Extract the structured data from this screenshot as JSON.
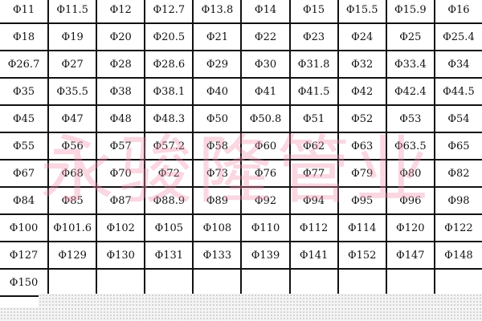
{
  "watermark": "永骏隆管业",
  "colors": {
    "watermark": "#f08caa",
    "grid": "#111111"
  },
  "rows": [
    [
      "Φ11",
      "Φ11.5",
      "Φ12",
      "Φ12.7",
      "Φ13.8",
      "Φ14",
      "Φ15",
      "Φ15.5",
      "Φ15.9",
      "Φ16"
    ],
    [
      "Φ18",
      "Φ19",
      "Φ20",
      "Φ20.5",
      "Φ21",
      "Φ22",
      "Φ23",
      "Φ24",
      "Φ25",
      "Φ25.4"
    ],
    [
      "Φ26.7",
      "Φ27",
      "Φ28",
      "Φ28.6",
      "Φ29",
      "Φ30",
      "Φ31.8",
      "Φ32",
      "Φ33.4",
      "Φ34"
    ],
    [
      "Φ35",
      "Φ35.5",
      "Φ38",
      "Φ38.1",
      "Φ40",
      "Φ41",
      "Φ41.5",
      "Φ42",
      "Φ42.4",
      "Φ44.5"
    ],
    [
      "Φ45",
      "Φ47",
      "Φ48",
      "Φ48.3",
      "Φ50",
      "Φ50.8",
      "Φ51",
      "Φ52",
      "Φ53",
      "Φ54"
    ],
    [
      "Φ55",
      "Φ56",
      "Φ57",
      "Φ57.2",
      "Φ58",
      "Φ60",
      "Φ62",
      "Φ63",
      "Φ63.5",
      "Φ65"
    ],
    [
      "Φ67",
      "Φ68",
      "Φ70",
      "Φ72",
      "Φ73",
      "Φ76",
      "Φ77",
      "Φ79",
      "Φ80",
      "Φ82"
    ],
    [
      "Φ84",
      "Φ85",
      "Φ87",
      "Φ88.9",
      "Φ89",
      "Φ92",
      "Φ94",
      "Φ95",
      "Φ96",
      "Φ98"
    ],
    [
      "Φ100",
      "Φ101.6",
      "Φ102",
      "Φ105",
      "Φ108",
      "Φ110",
      "Φ112",
      "Φ114",
      "Φ120",
      "Φ122"
    ],
    [
      "Φ127",
      "Φ129",
      "Φ130",
      "Φ131",
      "Φ133",
      "Φ139",
      "Φ141",
      "Φ152",
      "Φ147",
      "Φ148"
    ],
    [
      "Φ150",
      "",
      "",
      "",
      "",
      "",
      "",
      "",
      "",
      ""
    ]
  ]
}
